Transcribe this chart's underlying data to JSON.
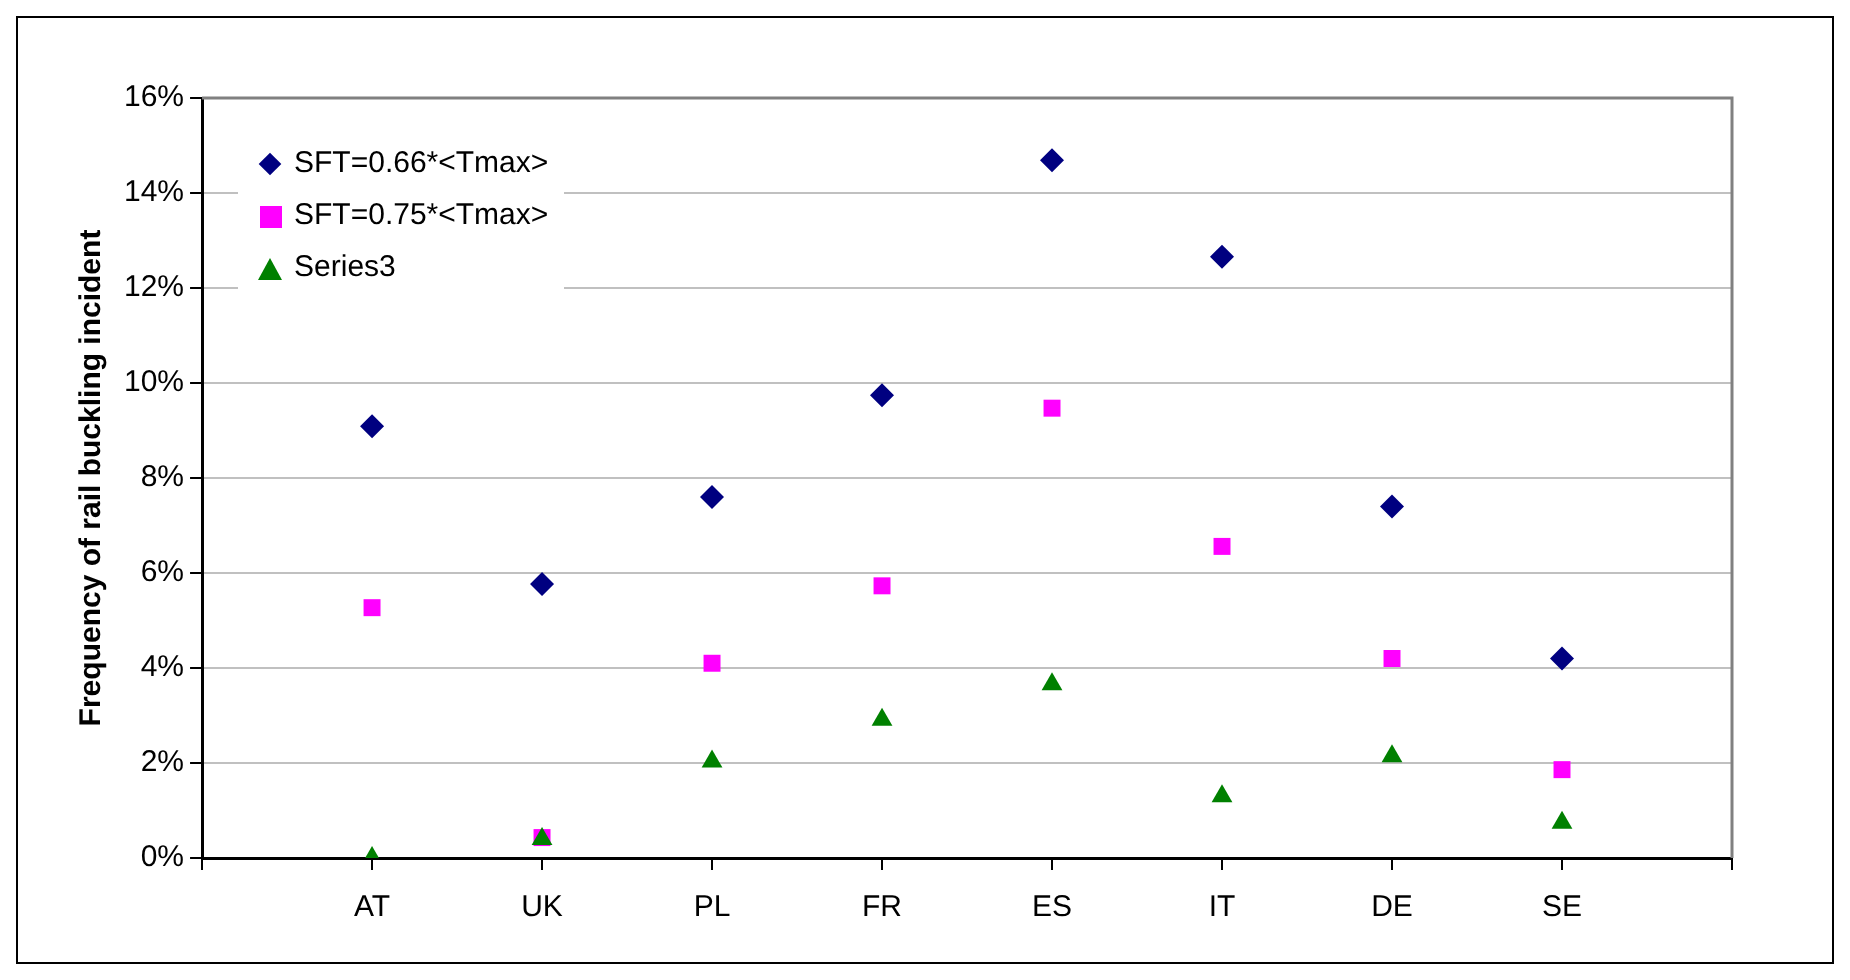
{
  "chart_data": {
    "type": "scatter",
    "ylabel": "Frequency of rail buckling incident",
    "categories": [
      null,
      "AT",
      "UK",
      "PL",
      "FR",
      "ES",
      "IT",
      "DE",
      "SE",
      null
    ],
    "series": [
      {
        "name": "SFT=0.66*<Tmax>",
        "color": "#000080",
        "marker": "diamond",
        "values": [
          null,
          9.09,
          5.77,
          7.6,
          9.74,
          14.69,
          12.66,
          7.4,
          4.2,
          null
        ]
      },
      {
        "name": "SFT=0.75*<Tmax>",
        "color": "#ff00ff",
        "marker": "square",
        "values": [
          null,
          5.27,
          0.43,
          4.1,
          5.73,
          9.47,
          6.56,
          4.2,
          1.86,
          null
        ]
      },
      {
        "name": "Series3",
        "color": "#008000",
        "marker": "triangle",
        "values": [
          null,
          0,
          0.4,
          2.03,
          2.91,
          3.66,
          1.3,
          2.14,
          0.74,
          null
        ]
      }
    ],
    "ylim": [
      0,
      16
    ],
    "yticks": [
      {
        "value": 0,
        "label": "0%"
      },
      {
        "value": 2,
        "label": "2%"
      },
      {
        "value": 4,
        "label": "4%"
      },
      {
        "value": 6,
        "label": "6%"
      },
      {
        "value": 8,
        "label": "8%"
      },
      {
        "value": 10,
        "label": "10%"
      },
      {
        "value": 12,
        "label": "12%"
      },
      {
        "value": 14,
        "label": "14%"
      },
      {
        "value": 16,
        "label": "16%"
      }
    ],
    "grid": "y",
    "legend": "top left"
  }
}
